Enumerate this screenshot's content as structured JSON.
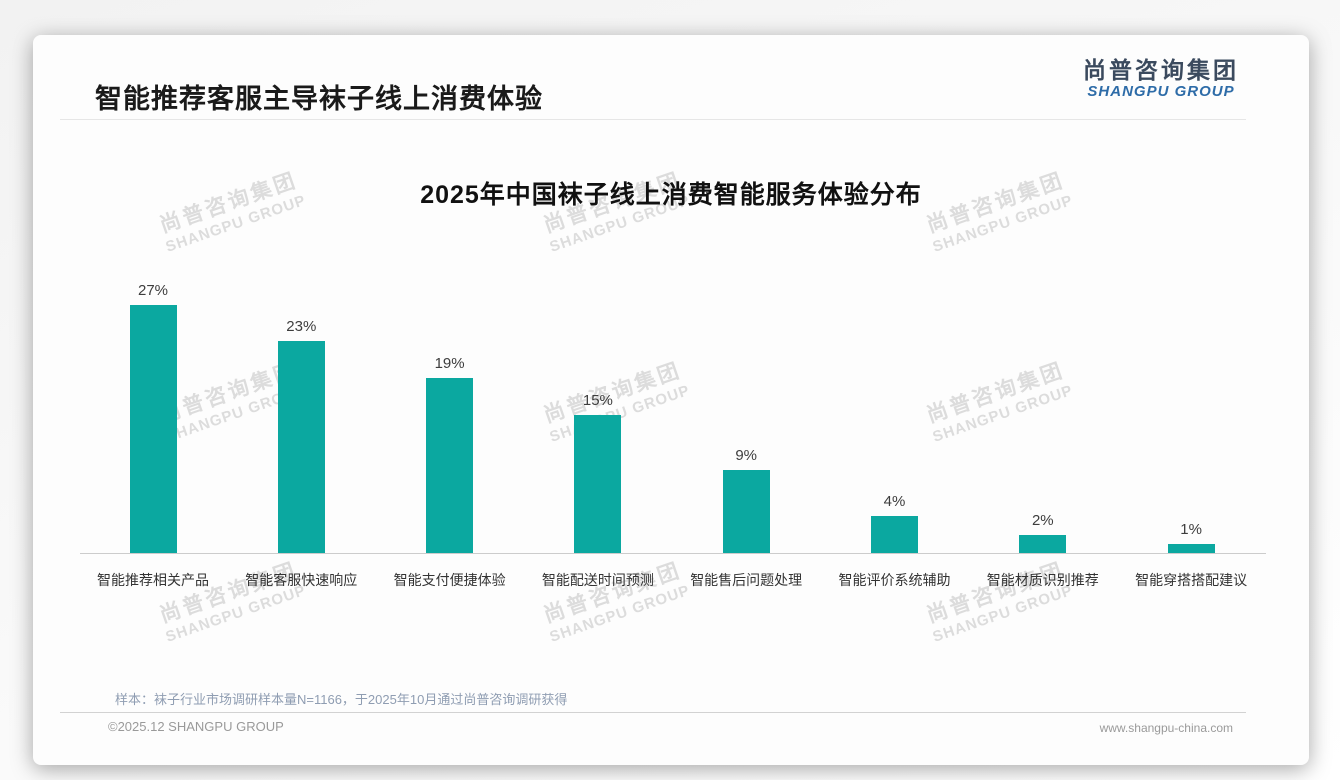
{
  "page": {
    "title": "智能推荐客服主导袜子线上消费体验",
    "logo": {
      "cn": "尚普咨询集团",
      "en": "SHANGPU GROUP"
    },
    "watermark": {
      "cn": "尚普咨询集团",
      "en": "SHANGPU GROUP"
    },
    "note": "样本：袜子行业市场调研样本量N=1166，于2025年10月通过尚普咨询调研获得",
    "footer": {
      "copyright": "©2025.12 SHANGPU GROUP",
      "website": "www.shangpu-china.com"
    }
  },
  "colors": {
    "bar": "#0BA8A0",
    "logo_cn": "#3b4a5e",
    "logo_en": "#2e6ca8"
  },
  "chart_data": {
    "type": "bar",
    "title": "2025年中国袜子线上消费智能服务体验分布",
    "categories": [
      "智能推荐相关产品",
      "智能客服快速响应",
      "智能支付便捷体验",
      "智能配送时间预测",
      "智能售后问题处理",
      "智能评价系统辅助",
      "智能材质识别推荐",
      "智能穿搭搭配建议"
    ],
    "values": [
      27,
      23,
      19,
      15,
      9,
      4,
      2,
      1
    ],
    "unit": "%",
    "xlabel": "",
    "ylabel": "",
    "ylim": [
      0,
      30
    ],
    "grid": false,
    "legend": false,
    "data_labels": true,
    "bar_color": "#0BA8A0"
  }
}
